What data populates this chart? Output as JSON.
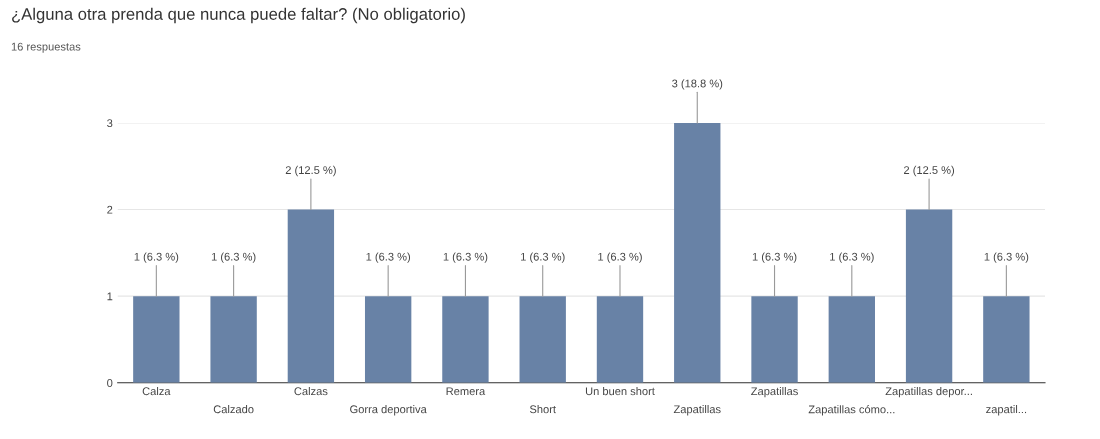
{
  "chart_data": {
    "type": "bar",
    "title": "¿Alguna otra prenda que nunca puede faltar? (No obligatorio)",
    "subtitle": "16 respuestas",
    "categories": [
      "Calza",
      "Calzado",
      "Calzas",
      "Gorra deportiva",
      "Remera",
      "Short",
      "Un buen short",
      "Zapatillas",
      "Zapatillas",
      "Zapatillas cómo...",
      "Zapatillas depor...",
      "zapatil..."
    ],
    "values": [
      1,
      1,
      2,
      1,
      1,
      1,
      1,
      3,
      1,
      1,
      2,
      1
    ],
    "value_labels": [
      "1 (6.3 %)",
      "1 (6.3 %)",
      "2 (12.5 %)",
      "1 (6.3 %)",
      "1 (6.3 %)",
      "1 (6.3 %)",
      "1 (6.3 %)",
      "3 (18.8 %)",
      "1 (6.3 %)",
      "1 (6.3 %)",
      "2 (12.5 %)",
      "1 (6.3 %)"
    ],
    "color": "#6882a6",
    "ylim": [
      0,
      3
    ],
    "yticks": [
      0,
      1,
      2,
      3
    ],
    "grid": "y",
    "legend": false
  }
}
